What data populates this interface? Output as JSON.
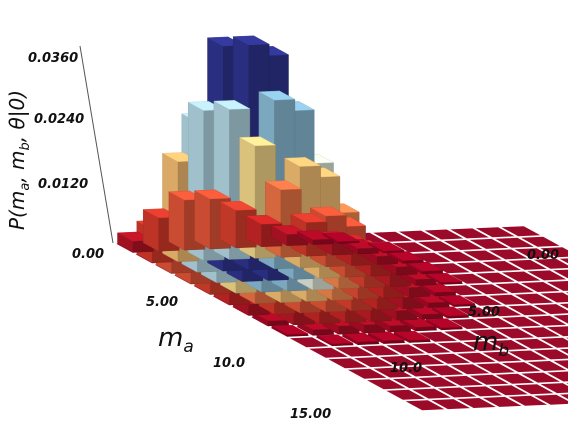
{
  "chart_data": {
    "type": "bar3d",
    "title": "",
    "zlabel": "P(m_a, m_b, θ|0)",
    "xlabel": "m_a",
    "ylabel": "m_b",
    "x_ticks": [
      "0.00",
      "5.00",
      "10.0",
      "15.00"
    ],
    "x_tick_values": [
      0,
      5,
      10,
      15
    ],
    "y_ticks": [
      "0.00",
      "5.00",
      "10.0"
    ],
    "y_tick_values": [
      0,
      5,
      10
    ],
    "z_ticks": [
      "0.00",
      "0.0120",
      "0.0240",
      "0.0360"
    ],
    "z_tick_values": [
      0,
      0.012,
      0.024,
      0.036
    ],
    "grid_size": 16,
    "zlim": [
      0,
      0.036
    ],
    "distribution": "approx. product of two Poisson-like distributions peaked near m_a = m_b = 3",
    "peak_value": 0.0405,
    "colormap": "diverging RdYlBu_r (dark red at 0, yellow near 0.018, dark blue at max)",
    "floor_color": "#9c0a2a"
  }
}
